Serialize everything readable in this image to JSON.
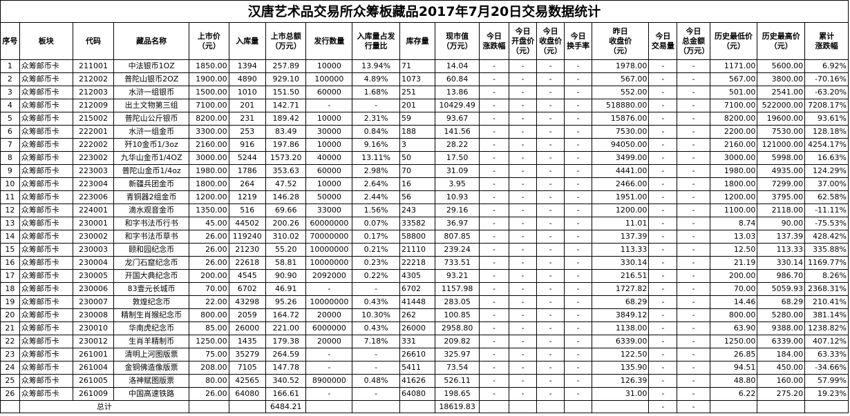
{
  "title": "汉唐艺术品交易所众筹板藏品2017年7月20日交易数据统计",
  "headers": [
    [
      "序号"
    ],
    [
      "板块"
    ],
    [
      "代码"
    ],
    [
      "藏品名称"
    ],
    [
      "上市价",
      "（元）"
    ],
    [
      "入库量"
    ],
    [
      "上市总额",
      "（万元）"
    ],
    [
      "发行数量"
    ],
    [
      "入库量占发",
      "行量比"
    ],
    [
      "库存量"
    ],
    [
      "现市值",
      "（万元）"
    ],
    [
      "今日",
      "涨跌幅"
    ],
    [
      "今日",
      "开盘价",
      "（元）"
    ],
    [
      "今日",
      "收盘价",
      "（元）"
    ],
    [
      "今日",
      "换手率"
    ],
    [
      "昨日",
      "收盘价",
      "（元）"
    ],
    [
      "今日",
      "交易量"
    ],
    [
      "今日",
      "总金额",
      "（万元）"
    ],
    [
      "历史最低价",
      "（元）"
    ],
    [
      "历史最高价",
      "（元）"
    ],
    [
      "累计",
      "涨跌幅"
    ]
  ],
  "rows": [
    [
      "1",
      "众筹邮币卡",
      "211001",
      "中法银币1OZ",
      "1850.00",
      "1394",
      "257.89",
      "10000",
      "13.94%",
      "71",
      "14.04",
      "-",
      "-",
      "-",
      "-",
      "1978.00",
      "-",
      "-",
      "1171.00",
      "5600.00",
      "6.92%"
    ],
    [
      "2",
      "众筹邮币卡",
      "212002",
      "普陀山银币2OZ",
      "1900.00",
      "4890",
      "929.10",
      "100000",
      "4.89%",
      "1073",
      "60.84",
      "-",
      "-",
      "-",
      "-",
      "567.00",
      "-",
      "-",
      "567.00",
      "3800.00",
      "-70.16%"
    ],
    [
      "3",
      "众筹邮币卡",
      "212003",
      "水浒一组银币",
      "1500.00",
      "1010",
      "151.50",
      "60000",
      "1.68%",
      "251",
      "13.86",
      "-",
      "-",
      "-",
      "-",
      "552.00",
      "-",
      "-",
      "501.00",
      "2541.00",
      "-63.20%"
    ],
    [
      "4",
      "众筹邮币卡",
      "212009",
      "出土文物第三组",
      "7100.00",
      "201",
      "142.71",
      "-",
      "-",
      "201",
      "10429.49",
      "-",
      "-",
      "-",
      "-",
      "518880.00",
      "-",
      "-",
      "7100.00",
      "522000.00",
      "7208.17%"
    ],
    [
      "5",
      "众筹邮币卡",
      "215002",
      "普陀山公斤银币",
      "8200.00",
      "231",
      "189.42",
      "10000",
      "2.31%",
      "59",
      "93.67",
      "-",
      "-",
      "-",
      "-",
      "15876.00",
      "-",
      "-",
      "8200.00",
      "19600.00",
      "93.61%"
    ],
    [
      "6",
      "众筹邮币卡",
      "222001",
      "水浒一组金币",
      "3300.00",
      "253",
      "83.49",
      "30000",
      "0.84%",
      "188",
      "141.56",
      "-",
      "-",
      "-",
      "-",
      "7530.00",
      "-",
      "-",
      "2200.00",
      "7530.00",
      "128.18%"
    ],
    [
      "7",
      "众筹邮币卡",
      "222002",
      "歼10金币1/3oz",
      "2160.00",
      "916",
      "197.86",
      "10000",
      "9.16%",
      "3",
      "28.22",
      "-",
      "-",
      "-",
      "-",
      "94050.00",
      "-",
      "-",
      "2160.00",
      "121000.00",
      "4254.17%"
    ],
    [
      "8",
      "众筹邮币卡",
      "223002",
      "九华山金币1/4OZ",
      "3000.00",
      "5244",
      "1573.20",
      "40000",
      "13.11%",
      "50",
      "17.50",
      "-",
      "-",
      "-",
      "-",
      "3499.00",
      "-",
      "-",
      "3000.00",
      "5998.00",
      "16.63%"
    ],
    [
      "9",
      "众筹邮币卡",
      "223003",
      "普陀山金币1/4oz",
      "1980.00",
      "1786",
      "353.63",
      "60000",
      "2.98%",
      "70",
      "31.09",
      "-",
      "-",
      "-",
      "-",
      "4441.00",
      "-",
      "-",
      "1980.00",
      "4935.00",
      "124.29%"
    ],
    [
      "10",
      "众筹邮币卡",
      "223004",
      "新疆兵团金币",
      "1800.00",
      "264",
      "47.52",
      "10000",
      "2.64%",
      "16",
      "3.95",
      "-",
      "-",
      "-",
      "-",
      "2466.00",
      "-",
      "-",
      "1800.00",
      "7299.00",
      "37.00%"
    ],
    [
      "11",
      "众筹邮币卡",
      "223006",
      "青铜器2组金币",
      "1200.00",
      "1219",
      "146.28",
      "50000",
      "2.44%",
      "56",
      "10.93",
      "-",
      "-",
      "-",
      "-",
      "1951.00",
      "-",
      "-",
      "1200.00",
      "3795.00",
      "62.58%"
    ],
    [
      "12",
      "众筹邮币卡",
      "224001",
      "滴水观音金币",
      "1350.00",
      "516",
      "69.66",
      "33000",
      "1.56%",
      "243",
      "29.16",
      "-",
      "-",
      "-",
      "-",
      "1200.00",
      "-",
      "-",
      "1100.00",
      "2118.00",
      "-11.11%"
    ],
    [
      "13",
      "众筹邮币卡",
      "230001",
      "和字书法币行书",
      "45.00",
      "44502",
      "200.26",
      "60000000",
      "0.07%",
      "33582",
      "36.97",
      "-",
      "-",
      "-",
      "-",
      "11.01",
      "-",
      "-",
      "8.74",
      "90.00",
      "-75.53%"
    ],
    [
      "14",
      "众筹邮币卡",
      "230002",
      "和字书法币草书",
      "26.00",
      "119240",
      "310.02",
      "70000000",
      "0.17%",
      "58800",
      "807.85",
      "-",
      "-",
      "-",
      "-",
      "137.39",
      "-",
      "-",
      "13.03",
      "137.39",
      "428.42%"
    ],
    [
      "15",
      "众筹邮币卡",
      "230003",
      "颐和园纪念币",
      "26.00",
      "21230",
      "55.20",
      "10000000",
      "0.21%",
      "21110",
      "239.24",
      "-",
      "-",
      "-",
      "-",
      "113.33",
      "-",
      "-",
      "12.50",
      "113.33",
      "335.88%"
    ],
    [
      "16",
      "众筹邮币卡",
      "230004",
      "龙门石窟纪念币",
      "26.00",
      "22618",
      "58.81",
      "10000000",
      "0.23%",
      "22218",
      "733.51",
      "-",
      "-",
      "-",
      "-",
      "330.14",
      "-",
      "-",
      "21.19",
      "330.14",
      "1169.77%"
    ],
    [
      "17",
      "众筹邮币卡",
      "230005",
      "开国大典纪念币",
      "200.00",
      "4545",
      "90.90",
      "2092000",
      "0.22%",
      "4305",
      "93.21",
      "-",
      "-",
      "-",
      "-",
      "216.51",
      "-",
      "-",
      "200.00",
      "986.70",
      "8.26%"
    ],
    [
      "18",
      "众筹邮币卡",
      "230006",
      "83壹元长城币",
      "70.00",
      "6702",
      "46.91",
      "-",
      "-",
      "6702",
      "1157.98",
      "-",
      "-",
      "-",
      "-",
      "1727.82",
      "-",
      "-",
      "70.00",
      "5059.93",
      "2368.31%"
    ],
    [
      "19",
      "众筹邮币卡",
      "230007",
      "敦煌纪念币",
      "22.00",
      "43298",
      "95.26",
      "10000000",
      "0.43%",
      "41448",
      "283.05",
      "-",
      "-",
      "-",
      "-",
      "68.29",
      "-",
      "-",
      "14.46",
      "68.29",
      "210.41%"
    ],
    [
      "20",
      "众筹邮币卡",
      "230008",
      "精制生肖猴纪念币",
      "800.00",
      "2059",
      "164.72",
      "20000",
      "10.30%",
      "262",
      "100.85",
      "-",
      "-",
      "-",
      "-",
      "3849.12",
      "-",
      "-",
      "800.00",
      "5280.00",
      "381.14%"
    ],
    [
      "21",
      "众筹邮币卡",
      "230010",
      "华南虎纪念币",
      "85.00",
      "26000",
      "221.00",
      "6000000",
      "0.43%",
      "26000",
      "2958.80",
      "-",
      "-",
      "-",
      "-",
      "1138.00",
      "-",
      "-",
      "63.90",
      "9388.00",
      "1238.82%"
    ],
    [
      "22",
      "众筹邮币卡",
      "230012",
      "生肖羊精制币",
      "1250.00",
      "1435",
      "179.38",
      "20000",
      "7.18%",
      "331",
      "209.82",
      "-",
      "-",
      "-",
      "-",
      "6339.00",
      "-",
      "-",
      "1250.00",
      "6339.00",
      "407.12%"
    ],
    [
      "23",
      "众筹邮币卡",
      "261001",
      "清明上河图版票",
      "75.00",
      "35279",
      "264.59",
      "-",
      "-",
      "26610",
      "325.97",
      "-",
      "-",
      "-",
      "-",
      "122.50",
      "-",
      "-",
      "26.85",
      "184.00",
      "63.33%"
    ],
    [
      "24",
      "众筹邮币卡",
      "261004",
      "金铜佛造像版票",
      "208.00",
      "7105",
      "147.78",
      "-",
      "-",
      "5411",
      "73.54",
      "-",
      "-",
      "-",
      "-",
      "135.90",
      "-",
      "-",
      "94.51",
      "450.00",
      "-34.66%"
    ],
    [
      "25",
      "众筹邮币卡",
      "261005",
      "洛神赋图版票",
      "80.00",
      "42565",
      "340.52",
      "8900000",
      "0.48%",
      "41626",
      "526.11",
      "-",
      "-",
      "-",
      "-",
      "126.39",
      "-",
      "-",
      "48.80",
      "160.00",
      "57.99%"
    ],
    [
      "26",
      "众筹邮币卡",
      "261009",
      "中国高速铁路",
      "26.00",
      "64080",
      "166.61",
      "-",
      "-",
      "64080",
      "198.65",
      "-",
      "-",
      "-",
      "-",
      "31.00",
      "-",
      "-",
      "6.22",
      "275.20",
      "19.23%"
    ]
  ],
  "total": {
    "label": "总计",
    "listing_total": "6484.21",
    "market_value_total": "18619.83",
    "volume": "-",
    "amount": "-"
  }
}
